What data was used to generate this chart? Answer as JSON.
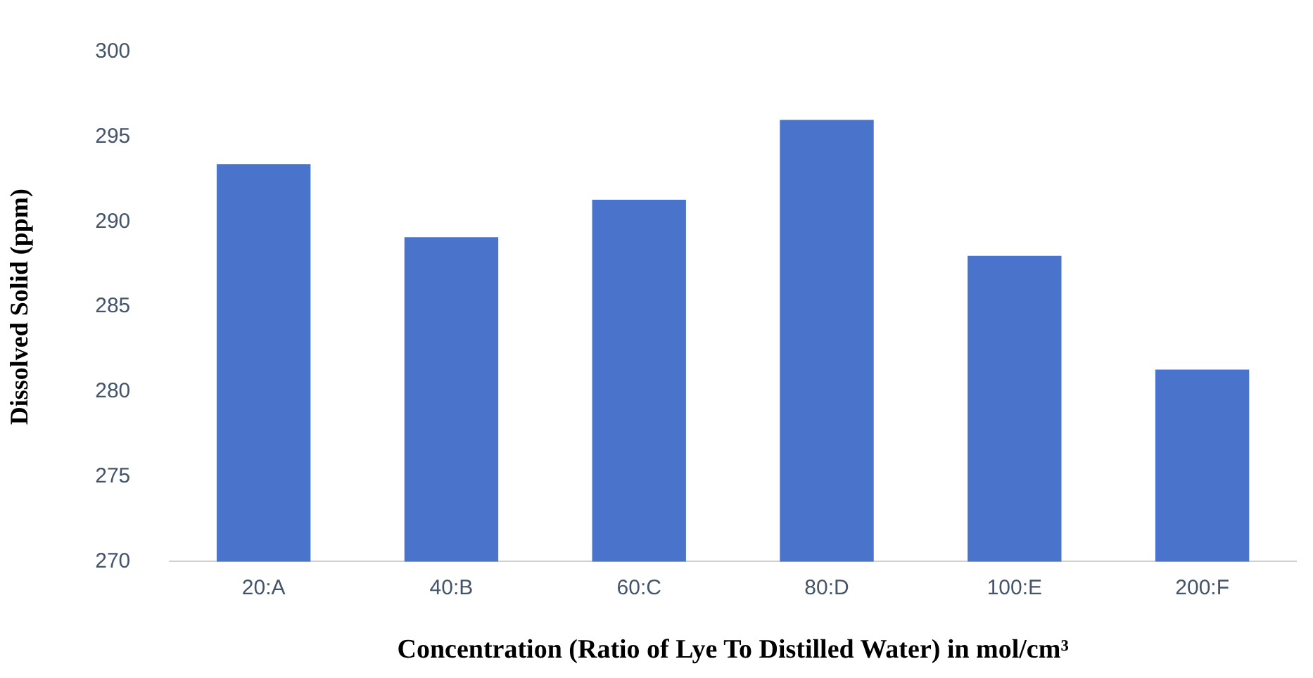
{
  "chart_data": {
    "type": "bar",
    "xlabel": "Concentration (Ratio of Lye To Distilled Water) in mol/cm³",
    "ylabel": "Dissolved Solid (ppm)",
    "categories": [
      "20:A",
      "40:B",
      "60:C",
      "80:D",
      "100:E",
      "200:F"
    ],
    "values": [
      293.4,
      289.1,
      291.3,
      296.0,
      288.0,
      281.3
    ],
    "color": "#4a74cc",
    "ylim": [
      270,
      300
    ],
    "yticks": [
      270,
      275,
      280,
      285,
      290,
      295,
      300
    ],
    "grid": false,
    "legend": false
  }
}
